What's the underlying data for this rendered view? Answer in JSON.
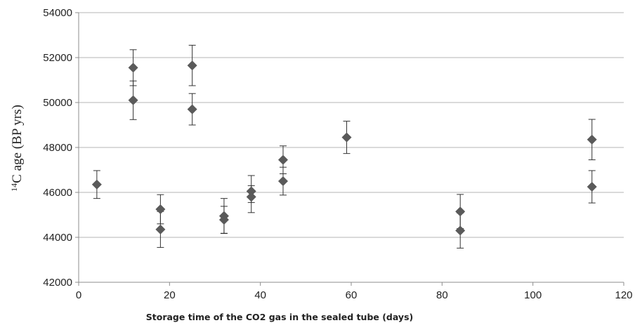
{
  "chart_data": {
    "type": "scatter",
    "title": "",
    "xlabel": "Storage time of the CO2 gas in the sealed tube (days)",
    "ylabel": {
      "superscript": "14",
      "text": "C age (BP yrs)"
    },
    "xlim": [
      0,
      120
    ],
    "ylim": [
      42000,
      54000
    ],
    "x_ticks": [
      0,
      20,
      40,
      60,
      80,
      100,
      120
    ],
    "y_ticks": [
      42000,
      44000,
      46000,
      48000,
      50000,
      52000,
      54000
    ],
    "x_tick_labels": [
      "0",
      "20",
      "40",
      "60",
      "80",
      "100",
      "120"
    ],
    "y_tick_labels": [
      "42000",
      "44000",
      "46000",
      "48000",
      "50000",
      "52000",
      "54000"
    ],
    "grid": "horizontal",
    "legend": "none",
    "marker": "diamond",
    "marker_color": "#5a5a5a",
    "points": [
      {
        "x": 4,
        "y": 46350,
        "err_low": 620,
        "err_high": 620
      },
      {
        "x": 12,
        "y": 51550,
        "err_low": 800,
        "err_high": 800
      },
      {
        "x": 12,
        "y": 50100,
        "err_low": 860,
        "err_high": 860
      },
      {
        "x": 18,
        "y": 45250,
        "err_low": 650,
        "err_high": 650
      },
      {
        "x": 18,
        "y": 44350,
        "err_low": 800,
        "err_high": 800
      },
      {
        "x": 25,
        "y": 51650,
        "err_low": 900,
        "err_high": 900
      },
      {
        "x": 25,
        "y": 49700,
        "err_low": 700,
        "err_high": 700
      },
      {
        "x": 32,
        "y": 44950,
        "err_low": 780,
        "err_high": 780
      },
      {
        "x": 32,
        "y": 44780,
        "err_low": 600,
        "err_high": 600
      },
      {
        "x": 38,
        "y": 46050,
        "err_low": 500,
        "err_high": 700
      },
      {
        "x": 38,
        "y": 45800,
        "err_low": 700,
        "err_high": 500
      },
      {
        "x": 45,
        "y": 47450,
        "err_low": 620,
        "err_high": 620
      },
      {
        "x": 45,
        "y": 46500,
        "err_low": 620,
        "err_high": 620
      },
      {
        "x": 59,
        "y": 48450,
        "err_low": 720,
        "err_high": 720
      },
      {
        "x": 84,
        "y": 45150,
        "err_low": 760,
        "err_high": 760
      },
      {
        "x": 84,
        "y": 44300,
        "err_low": 780,
        "err_high": 780
      },
      {
        "x": 113,
        "y": 48350,
        "err_low": 900,
        "err_high": 900
      },
      {
        "x": 113,
        "y": 46250,
        "err_low": 720,
        "err_high": 720
      }
    ]
  }
}
